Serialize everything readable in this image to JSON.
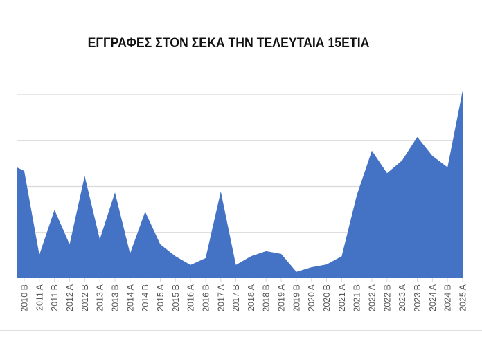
{
  "chart_data": {
    "type": "area",
    "title": "ΕΓΓΡΑΦΕΣ ΣΤΟΝ ΣΕΚΑ ΤΗΝ ΤΕΛΕΥΤΑΙΑ 15ΕΤΙΑ",
    "xlabel": "",
    "ylabel": "",
    "y_axis_labels_visible": false,
    "y_units_note": "unlabeled axis; values in gridline units x100",
    "ylim": [
      0,
      400
    ],
    "gridlines": [
      100,
      200,
      300,
      400
    ],
    "grid": true,
    "legend": null,
    "categories": [
      "2010 B",
      "2011 A",
      "2011 B",
      "2012 A",
      "2012 B",
      "2013 A",
      "2013 B",
      "2014 A",
      "2014 B",
      "2015 A",
      "2015 B",
      "2016 A",
      "2016 B",
      "2017 A",
      "2017 B",
      "2018 A",
      "2018 B",
      "2019 A",
      "2019 B",
      "2020 A",
      "2020 B",
      "2021 A",
      "2021 B",
      "2022 A",
      "2022 B",
      "2023 A",
      "2023 B",
      "2024 A",
      "2024 B",
      "2025 A"
    ],
    "series": [
      {
        "name": "Εγγραφές",
        "color": "#4472C4",
        "values": [
          234,
          51,
          149,
          74,
          223,
          85,
          187,
          54,
          145,
          74,
          48,
          29,
          44,
          189,
          29,
          48,
          59,
          53,
          14,
          24,
          30,
          48,
          181,
          278,
          229,
          257,
          308,
          267,
          242,
          409
        ]
      }
    ],
    "leading_partial_value": 242
  },
  "colors": {
    "area_fill": "#4472C4",
    "gridline": "#d9d9d9",
    "tick_label": "#595959",
    "title": "#111111"
  }
}
